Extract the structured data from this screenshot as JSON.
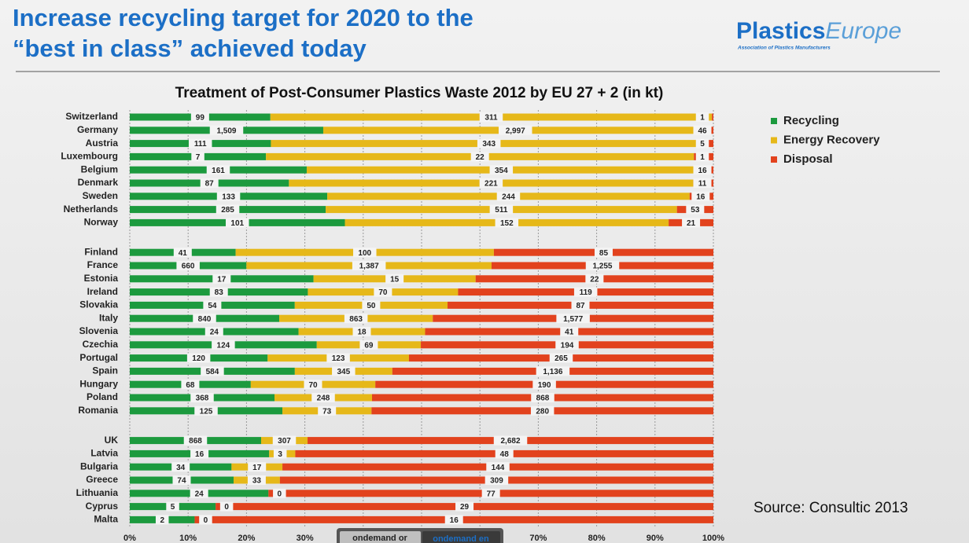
{
  "header": {
    "title_lines": [
      "Increase recycling target for 2020 to the",
      "“best in class” achieved today"
    ],
    "logo_main": "Plastics",
    "logo_accent": "Europe",
    "logo_tagline": "Association of Plastics Manufacturers"
  },
  "source": "Source: Consultic 2013",
  "buttons": [
    "ondemand or",
    "ondemand en"
  ],
  "chart_data": {
    "type": "bar",
    "orientation": "horizontal",
    "stacked": "percent",
    "title": "Treatment of Post-Consumer Plastics Waste 2012 by EU 27 + 2 (in kt)",
    "categories": [
      "Switzerland",
      "Germany",
      "Austria",
      "Luxembourg",
      "Belgium",
      "Denmark",
      "Sweden",
      "Netherlands",
      "Norway",
      "Finland",
      "France",
      "Estonia",
      "Ireland",
      "Slovakia",
      "Italy",
      "Slovenia",
      "Czechia",
      "Portugal",
      "Spain",
      "Hungary",
      "Poland",
      "Romania",
      "UK",
      "Latvia",
      "Bulgaria",
      "Greece",
      "Lithuania",
      "Cyprus",
      "Malta"
    ],
    "series": [
      {
        "name": "Recycling",
        "color": "#1c9a3e",
        "values": [
          99,
          1509,
          111,
          7,
          161,
          87,
          133,
          285,
          101,
          41,
          660,
          17,
          83,
          54,
          840,
          24,
          124,
          120,
          584,
          68,
          368,
          125,
          868,
          16,
          34,
          74,
          24,
          5,
          2
        ],
        "value_labels": [
          "99",
          "1,509",
          "111",
          "7",
          "161",
          "87",
          "133",
          "285",
          "101",
          "41",
          "660",
          "17",
          "83",
          "54",
          "840",
          "24",
          "124",
          "120",
          "584",
          "68",
          "368",
          "125",
          "868",
          "16",
          "34",
          "74",
          "24",
          "5",
          "2"
        ]
      },
      {
        "name": "Energy Recovery",
        "color": "#e6b819",
        "values": [
          311,
          2997,
          343,
          22,
          354,
          221,
          244,
          511,
          152,
          100,
          1387,
          15,
          70,
          50,
          863,
          18,
          69,
          123,
          345,
          70,
          248,
          73,
          307,
          3,
          17,
          33,
          0,
          0,
          0
        ],
        "value_labels": [
          "311",
          "2,997",
          "343",
          "22",
          "354",
          "221",
          "244",
          "511",
          "152",
          "100",
          "1,387",
          "15",
          "70",
          "50",
          "863",
          "18",
          "69",
          "123",
          "345",
          "70",
          "248",
          "73",
          "307",
          "3",
          "17",
          "33",
          "0",
          "0",
          "0"
        ]
      },
      {
        "name": "Disposal",
        "color": "#e2421d",
        "values": [
          1,
          46,
          5,
          1,
          16,
          11,
          16,
          53,
          21,
          85,
          1255,
          22,
          119,
          87,
          1577,
          41,
          194,
          265,
          1136,
          190,
          868,
          280,
          2682,
          48,
          144,
          309,
          77,
          29,
          16
        ],
        "value_labels": [
          "1",
          "46",
          "5",
          "1",
          "16",
          "11",
          "16",
          "53",
          "21",
          "85",
          "1,255",
          "22",
          "119",
          "87",
          "1,577",
          "41",
          "194",
          "265",
          "1,136",
          "190",
          "868",
          "280",
          "2,682",
          "48",
          "144",
          "309",
          "77",
          "29",
          "16"
        ]
      }
    ],
    "xlim": [
      0,
      100
    ],
    "xticks": [
      {
        "value": 0,
        "label": "0%"
      },
      {
        "value": 10,
        "label": "10%"
      },
      {
        "value": 20,
        "label": "20%"
      },
      {
        "value": 30,
        "label": "30%"
      },
      {
        "value": 40,
        "label": "40%"
      },
      {
        "value": 50,
        "label": "50%"
      },
      {
        "value": 60,
        "label": "60%"
      },
      {
        "value": 70,
        "label": "70%"
      },
      {
        "value": 80,
        "label": "80%"
      },
      {
        "value": 90,
        "label": "90%"
      },
      {
        "value": 100,
        "label": "100%"
      }
    ],
    "grid": true,
    "legend": "right"
  }
}
